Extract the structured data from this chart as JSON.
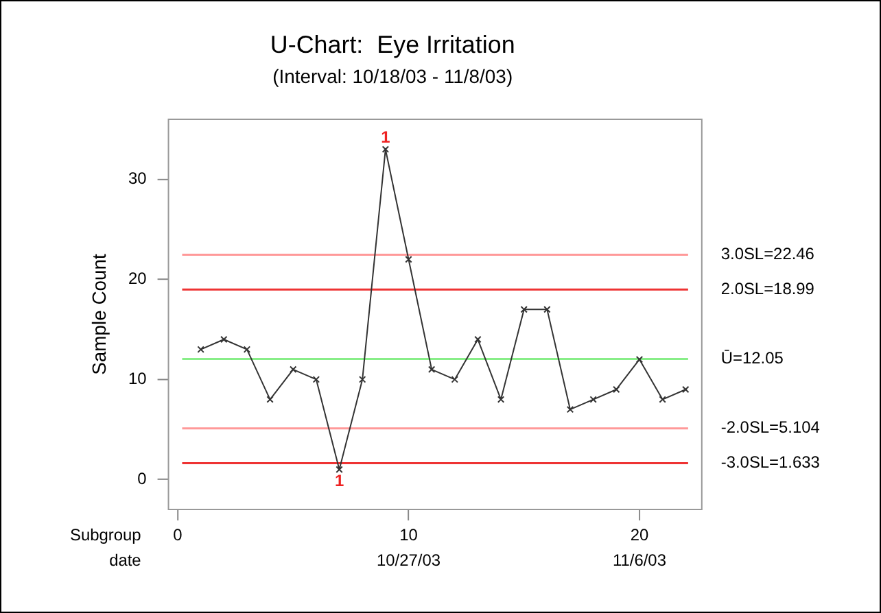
{
  "chart_data": {
    "type": "line",
    "title": "U-Chart:  Eye Irritation",
    "subtitle": "(Interval: 10/18/03 - 11/8/03)",
    "xlabel": "Subgroup",
    "ylabel": "Sample Count",
    "x": [
      1,
      2,
      3,
      4,
      5,
      6,
      7,
      8,
      9,
      10,
      11,
      12,
      13,
      14,
      15,
      16,
      17,
      18,
      19,
      20,
      21,
      22
    ],
    "series": [
      {
        "color": "#333333",
        "values": [
          13,
          14,
          13,
          8,
          11,
          10,
          1,
          10,
          33,
          22,
          11,
          10,
          14,
          8,
          17,
          17,
          7,
          8,
          9,
          12,
          8,
          9
        ]
      }
    ],
    "xlim": [
      -0.4,
      22.7
    ],
    "xticks": [
      0,
      10,
      20
    ],
    "x2label": "date",
    "x2lim": [
      "2003-10-16T14:24",
      "2003-11-08T16:48"
    ],
    "x2ticks": [
      {
        "value": "2003-10-27",
        "label": "10/27/03"
      },
      {
        "value": "2003-11-06",
        "label": "11/6/03"
      }
    ],
    "ylim": [
      -3,
      36
    ],
    "yticks": [
      0,
      10,
      20,
      30
    ],
    "ref_lines": [
      {
        "axis": "y",
        "value": 22.46,
        "label": "3.0SL=22.46",
        "color": "#ff9999"
      },
      {
        "axis": "y",
        "value": 18.99,
        "label": "2.0SL=18.99",
        "color": "#ee3333"
      },
      {
        "axis": "y",
        "value": 12.05,
        "label": "Ū=12.05",
        "color": "#88ee88"
      },
      {
        "axis": "y",
        "value": 5.104,
        "label": "-2.0SL=5.104",
        "color": "#ff9999"
      },
      {
        "axis": "y",
        "value": 1.633,
        "label": "-3.0SL=1.633",
        "color": "#ee3333"
      }
    ],
    "annotations": [
      {
        "text": "1",
        "x": 9,
        "y": 33
      },
      {
        "text": "1",
        "x": 7,
        "y": 1
      }
    ],
    "marker": "cross",
    "line_style": "solid",
    "grid": false,
    "legend": false
  }
}
